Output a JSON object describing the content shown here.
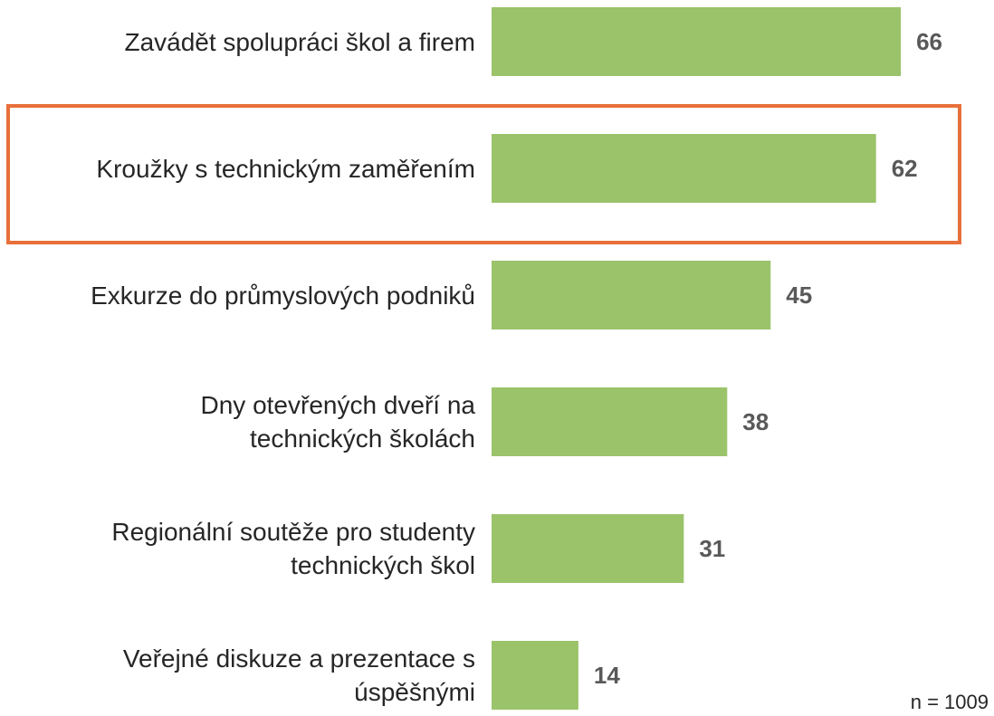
{
  "chart_data": {
    "type": "bar",
    "orientation": "horizontal",
    "categories": [
      "Zavádět spolupráci škol a firem",
      "Kroužky s technickým zaměřením",
      "Exkurze do průmyslových podniků",
      "Dny otevřených dveří na\ntechnických školách",
      "Regionální soutěže pro studenty\ntechnických škol",
      "Veřejné diskuze a prezentace s\núspěšnými"
    ],
    "values": [
      66,
      62,
      45,
      38,
      31,
      14
    ],
    "color": "#9bc36a",
    "annotation": "n = 1009"
  }
}
